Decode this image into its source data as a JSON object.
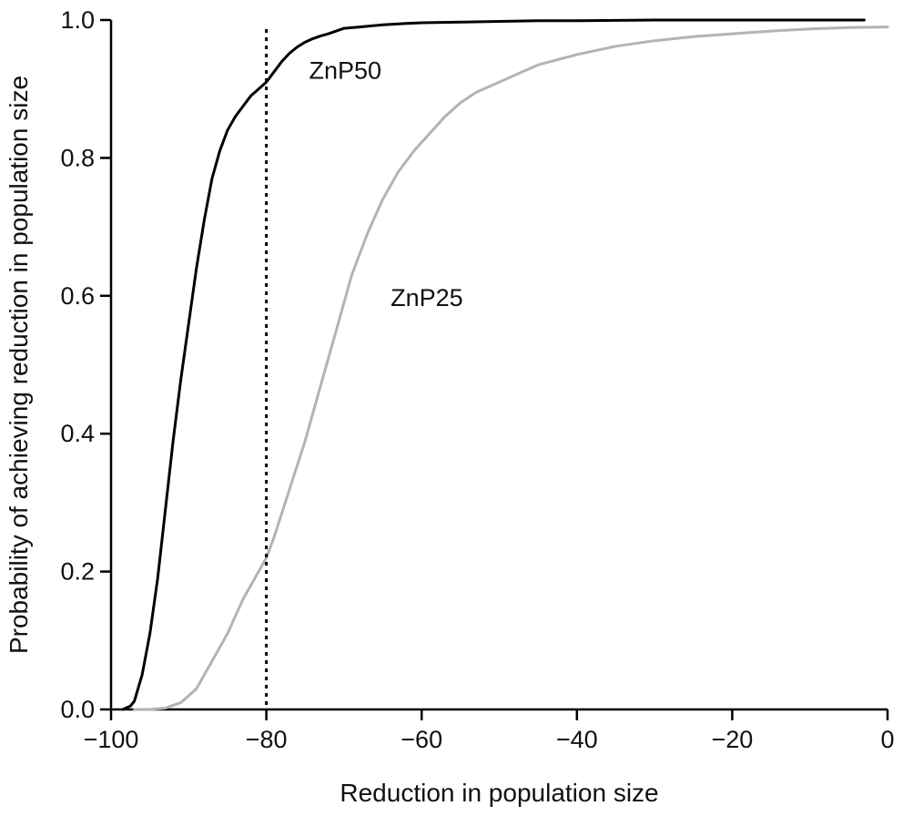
{
  "chart_data": {
    "type": "line",
    "title": "",
    "xlabel": "Reduction in population size",
    "ylabel": "Probability of achieving reduction in population size",
    "xlim": [
      -100,
      0
    ],
    "ylim": [
      0,
      1
    ],
    "x_ticks": [
      -100,
      -80,
      -60,
      -40,
      -20,
      0
    ],
    "x_tick_labels": [
      "−100",
      "−80",
      "−60",
      "−40",
      "−20",
      "0"
    ],
    "y_ticks": [
      0,
      0.2,
      0.4,
      0.6,
      0.8,
      1.0
    ],
    "y_tick_labels": [
      "0.0",
      "0.2",
      "0.4",
      "0.6",
      "0.8",
      "1.0"
    ],
    "grid": false,
    "reference_line": {
      "x": -80,
      "style": "dotted",
      "color": "#000000"
    },
    "series": [
      {
        "name": "ZnP50",
        "color": "#000000",
        "x": [
          -98.5,
          -97.5,
          -97,
          -96,
          -95,
          -94,
          -93,
          -92,
          -91,
          -90,
          -89,
          -88,
          -87,
          -86,
          -85,
          -84,
          -83,
          -82,
          -81,
          -80,
          -79,
          -78,
          -77,
          -76,
          -75,
          -74,
          -73,
          -72,
          -71,
          -70,
          -68,
          -65,
          -62,
          -60,
          -55,
          -50,
          -45,
          -40,
          -30,
          -20,
          -3
        ],
        "y": [
          0.0,
          0.005,
          0.012,
          0.05,
          0.11,
          0.19,
          0.29,
          0.39,
          0.48,
          0.56,
          0.64,
          0.71,
          0.77,
          0.81,
          0.84,
          0.86,
          0.875,
          0.89,
          0.9,
          0.91,
          0.925,
          0.94,
          0.952,
          0.961,
          0.968,
          0.973,
          0.977,
          0.98,
          0.984,
          0.988,
          0.99,
          0.993,
          0.995,
          0.996,
          0.997,
          0.998,
          0.999,
          0.999,
          1.0,
          1.0,
          1.0
        ]
      },
      {
        "name": "ZnP25",
        "color": "#b3b3b3",
        "x": [
          -97,
          -95,
          -93,
          -91,
          -89,
          -87,
          -85,
          -83,
          -81,
          -80,
          -79,
          -77,
          -75,
          -73,
          -71,
          -69,
          -67,
          -65,
          -63,
          -61,
          -59,
          -57,
          -55,
          -53,
          -50,
          -47,
          -45,
          -40,
          -35,
          -30,
          -25,
          -20,
          -15,
          -10,
          -5,
          0
        ],
        "y": [
          0.0,
          0.0,
          0.002,
          0.01,
          0.03,
          0.07,
          0.11,
          0.16,
          0.2,
          0.22,
          0.25,
          0.32,
          0.39,
          0.47,
          0.55,
          0.63,
          0.69,
          0.74,
          0.78,
          0.81,
          0.835,
          0.86,
          0.88,
          0.895,
          0.91,
          0.925,
          0.935,
          0.95,
          0.962,
          0.97,
          0.976,
          0.98,
          0.984,
          0.987,
          0.989,
          0.99
        ]
      }
    ],
    "annotations": [
      {
        "text": "ZnP50",
        "x": -74.5,
        "y": 0.915
      },
      {
        "text": "ZnP25",
        "x": -64,
        "y": 0.585
      }
    ]
  }
}
